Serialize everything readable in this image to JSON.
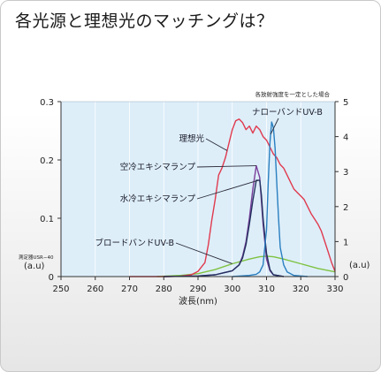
{
  "page": {
    "title": "各光源と理想光のマッチングは？"
  },
  "chart_data": {
    "type": "line",
    "title": "",
    "xlabel": "波長(nm)",
    "xlim": [
      250,
      330
    ],
    "x_ticks": [
      250,
      260,
      270,
      280,
      290,
      300,
      310,
      320,
      330
    ],
    "left_axis": {
      "ylim": [
        0,
        0.3
      ],
      "ticks": [
        0,
        0.1,
        0.2,
        0.3
      ],
      "unit_label": "(a.u)",
      "caption": "測定器USR−40"
    },
    "right_axis": {
      "ylim": [
        0,
        5
      ],
      "ticks": [
        0,
        1,
        2,
        3,
        4,
        5
      ],
      "unit_label": "(a.u)",
      "caption": "各放射強度を一定とした場合"
    },
    "colors": {
      "plot_bg": "#ddeef9"
    },
    "series": [
      {
        "name": "理想光",
        "axis": "right",
        "color": "#e03a4e",
        "x": [
          270,
          280,
          285,
          288,
          290,
          292,
          293,
          294,
          295,
          296,
          297,
          298,
          299,
          300,
          301,
          302,
          303,
          304,
          305,
          306,
          307,
          308,
          309,
          310,
          311,
          312,
          313,
          314,
          315,
          316,
          317,
          318,
          319,
          320,
          321,
          322,
          323,
          324,
          325,
          326,
          327,
          328,
          329,
          330
        ],
        "y": [
          0,
          0,
          0.01,
          0.05,
          0.15,
          0.4,
          0.9,
          1.6,
          2.2,
          2.9,
          3.1,
          3.4,
          3.8,
          4.2,
          4.45,
          4.5,
          4.4,
          4.2,
          4.3,
          4.1,
          4.3,
          4.2,
          4.0,
          3.9,
          3.7,
          3.5,
          3.4,
          3.2,
          3.1,
          2.9,
          2.7,
          2.5,
          2.4,
          2.3,
          2.2,
          2.0,
          1.8,
          1.65,
          1.5,
          1.3,
          1.0,
          0.7,
          0.4,
          0.15
        ]
      },
      {
        "name": "ナローバンドUV-B",
        "axis": "left",
        "color": "#2a7fc0",
        "x": [
          300,
          305,
          307,
          308,
          309,
          310,
          310.5,
          311,
          311.5,
          312,
          312.5,
          313,
          313.5,
          314,
          315,
          316,
          318,
          322
        ],
        "y": [
          0,
          0.002,
          0.004,
          0.008,
          0.02,
          0.08,
          0.16,
          0.23,
          0.265,
          0.255,
          0.22,
          0.16,
          0.1,
          0.05,
          0.02,
          0.008,
          0.002,
          0
        ]
      },
      {
        "name": "空冷エキシマランプ",
        "axis": "left",
        "color": "#7a3f9a",
        "x": [
          280,
          290,
          295,
          300,
          302,
          303,
          304,
          305,
          306,
          307,
          308,
          309,
          310,
          311,
          312,
          315
        ],
        "y": [
          0,
          0.001,
          0.003,
          0.01,
          0.02,
          0.035,
          0.06,
          0.1,
          0.15,
          0.19,
          0.17,
          0.09,
          0.03,
          0.01,
          0.003,
          0
        ]
      },
      {
        "name": "水冷エキシマランプ",
        "axis": "left",
        "color": "#23305f",
        "x": [
          280,
          290,
          295,
          300,
          302,
          303,
          304,
          305,
          306,
          307,
          308,
          308.5,
          309,
          310,
          311,
          312,
          315
        ],
        "y": [
          0,
          0.001,
          0.003,
          0.01,
          0.02,
          0.032,
          0.055,
          0.09,
          0.13,
          0.165,
          0.165,
          0.14,
          0.1,
          0.04,
          0.012,
          0.003,
          0
        ]
      },
      {
        "name": "ブロードバンドUV-B",
        "axis": "left",
        "color": "#7fc241",
        "x": [
          278,
          285,
          290,
          295,
          300,
          305,
          308,
          310,
          312,
          315,
          320,
          325,
          330
        ],
        "y": [
          0,
          0.002,
          0.005,
          0.012,
          0.022,
          0.03,
          0.034,
          0.035,
          0.034,
          0.03,
          0.022,
          0.014,
          0.008
        ]
      }
    ],
    "annotations": [
      {
        "series": 1,
        "text": "ナローバンドUV-B",
        "at_x": 311.2
      },
      {
        "series": 0,
        "text": "理想光",
        "at_x": 298.5
      },
      {
        "series": 2,
        "text": "空冷エキシマランプ",
        "at_x": 307
      },
      {
        "series": 3,
        "text": "水冷エキシマランプ",
        "at_x": 307.6
      },
      {
        "series": 4,
        "text": "ブロードバンドUV-B",
        "at_x": 300
      }
    ]
  }
}
